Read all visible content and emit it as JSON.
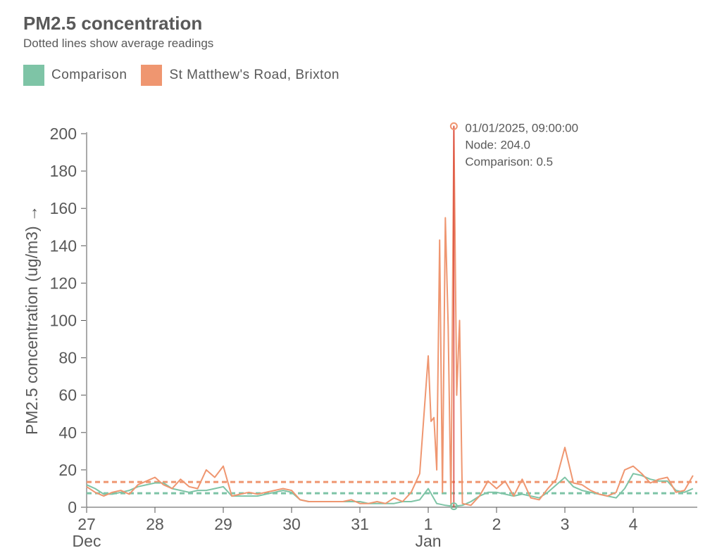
{
  "title": "PM2.5 concentration",
  "subtitle": "Dotted lines show average readings",
  "colors": {
    "comparison": "#7ec4a6",
    "node": "#ef9670",
    "cursor": "#d9423a",
    "axis": "#555555"
  },
  "legend": [
    {
      "label": "Comparison",
      "color": "#7ec4a6"
    },
    {
      "label": "St Matthew's Road, Brixton",
      "color": "#ef9670"
    }
  ],
  "tooltip": {
    "lines": [
      "01/01/2025, 09:00:00",
      "Node: 204.0",
      "Comparison: 0.5"
    ]
  },
  "chart_data": {
    "type": "line",
    "title": "PM2.5 concentration",
    "subtitle": "Dotted lines show average readings",
    "ylabel": "PM2.5 concentration (ug/m3) →",
    "xlabel": "",
    "ylim": [
      0,
      200
    ],
    "yticks": [
      0,
      20,
      40,
      60,
      80,
      100,
      120,
      140,
      160,
      180,
      200
    ],
    "xlim": [
      "2024-12-27T00:00",
      "2025-01-04T22:00"
    ],
    "xticks": [
      {
        "label": "27",
        "sub": "Dec",
        "date": "2024-12-27T00:00"
      },
      {
        "label": "28",
        "sub": "",
        "date": "2024-12-28T00:00"
      },
      {
        "label": "29",
        "sub": "",
        "date": "2024-12-29T00:00"
      },
      {
        "label": "30",
        "sub": "",
        "date": "2024-12-30T00:00"
      },
      {
        "label": "31",
        "sub": "",
        "date": "2024-12-31T00:00"
      },
      {
        "label": "1",
        "sub": "Jan",
        "date": "2025-01-01T00:00"
      },
      {
        "label": "2",
        "sub": "",
        "date": "2025-01-02T00:00"
      },
      {
        "label": "3",
        "sub": "",
        "date": "2025-01-03T00:00"
      },
      {
        "label": "4",
        "sub": "",
        "date": "2025-01-04T00:00"
      }
    ],
    "averages": {
      "Comparison": 7.5,
      "St Matthew's Road, Brixton": 13.5
    },
    "highlight": {
      "date": "2025-01-01T09:00",
      "node": 204.0,
      "comparison": 0.5
    },
    "series": [
      {
        "name": "Comparison",
        "color": "#7ec4a6",
        "points": [
          [
            "2024-12-27T00:00",
            12
          ],
          [
            "2024-12-27T03:00",
            10
          ],
          [
            "2024-12-27T06:00",
            7
          ],
          [
            "2024-12-27T09:00",
            7
          ],
          [
            "2024-12-27T12:00",
            8
          ],
          [
            "2024-12-27T15:00",
            9
          ],
          [
            "2024-12-27T18:00",
            11
          ],
          [
            "2024-12-27T21:00",
            12
          ],
          [
            "2024-12-28T00:00",
            13
          ],
          [
            "2024-12-28T03:00",
            13
          ],
          [
            "2024-12-28T06:00",
            10
          ],
          [
            "2024-12-28T09:00",
            9
          ],
          [
            "2024-12-28T12:00",
            8
          ],
          [
            "2024-12-28T15:00",
            9
          ],
          [
            "2024-12-28T18:00",
            9
          ],
          [
            "2024-12-28T21:00",
            10
          ],
          [
            "2024-12-29T00:00",
            11
          ],
          [
            "2024-12-29T03:00",
            6
          ],
          [
            "2024-12-29T06:00",
            6
          ],
          [
            "2024-12-29T09:00",
            6
          ],
          [
            "2024-12-29T12:00",
            6
          ],
          [
            "2024-12-29T15:00",
            7
          ],
          [
            "2024-12-29T18:00",
            8
          ],
          [
            "2024-12-29T21:00",
            9
          ],
          [
            "2024-12-30T00:00",
            8
          ],
          [
            "2024-12-30T03:00",
            4
          ],
          [
            "2024-12-30T06:00",
            3
          ],
          [
            "2024-12-30T09:00",
            3
          ],
          [
            "2024-12-30T12:00",
            3
          ],
          [
            "2024-12-30T15:00",
            3
          ],
          [
            "2024-12-30T18:00",
            3
          ],
          [
            "2024-12-30T21:00",
            3
          ],
          [
            "2024-12-31T00:00",
            3
          ],
          [
            "2024-12-31T03:00",
            2
          ],
          [
            "2024-12-31T06:00",
            2
          ],
          [
            "2024-12-31T09:00",
            2
          ],
          [
            "2024-12-31T12:00",
            2
          ],
          [
            "2024-12-31T15:00",
            3
          ],
          [
            "2024-12-31T18:00",
            3
          ],
          [
            "2024-12-31T21:00",
            4
          ],
          [
            "2025-01-01T00:00",
            10
          ],
          [
            "2025-01-01T03:00",
            2
          ],
          [
            "2025-01-01T06:00",
            1
          ],
          [
            "2025-01-01T09:00",
            0.5
          ],
          [
            "2025-01-01T12:00",
            1
          ],
          [
            "2025-01-01T15:00",
            3
          ],
          [
            "2025-01-01T18:00",
            6
          ],
          [
            "2025-01-01T21:00",
            8
          ],
          [
            "2025-01-02T00:00",
            8
          ],
          [
            "2025-01-02T03:00",
            7
          ],
          [
            "2025-01-02T06:00",
            6
          ],
          [
            "2025-01-02T09:00",
            7
          ],
          [
            "2025-01-02T12:00",
            6
          ],
          [
            "2025-01-02T15:00",
            5
          ],
          [
            "2025-01-02T18:00",
            8
          ],
          [
            "2025-01-02T21:00",
            12
          ],
          [
            "2025-01-03T00:00",
            16
          ],
          [
            "2025-01-03T03:00",
            11
          ],
          [
            "2025-01-03T06:00",
            9
          ],
          [
            "2025-01-03T09:00",
            8
          ],
          [
            "2025-01-03T12:00",
            7
          ],
          [
            "2025-01-03T15:00",
            6
          ],
          [
            "2025-01-03T18:00",
            5
          ],
          [
            "2025-01-03T21:00",
            10
          ],
          [
            "2025-01-04T00:00",
            18
          ],
          [
            "2025-01-04T03:00",
            17
          ],
          [
            "2025-01-04T06:00",
            15
          ],
          [
            "2025-01-04T09:00",
            14
          ],
          [
            "2025-01-04T12:00",
            14
          ],
          [
            "2025-01-04T15:00",
            9
          ],
          [
            "2025-01-04T18:00",
            8
          ],
          [
            "2025-01-04T21:00",
            10
          ]
        ]
      },
      {
        "name": "St Matthew's Road, Brixton",
        "color": "#ef9670",
        "points": [
          [
            "2024-12-27T00:00",
            11
          ],
          [
            "2024-12-27T03:00",
            8
          ],
          [
            "2024-12-27T06:00",
            6
          ],
          [
            "2024-12-27T09:00",
            8
          ],
          [
            "2024-12-27T12:00",
            9
          ],
          [
            "2024-12-27T15:00",
            7
          ],
          [
            "2024-12-27T18:00",
            12
          ],
          [
            "2024-12-27T21:00",
            14
          ],
          [
            "2024-12-28T00:00",
            16
          ],
          [
            "2024-12-28T03:00",
            12
          ],
          [
            "2024-12-28T06:00",
            10
          ],
          [
            "2024-12-28T09:00",
            15
          ],
          [
            "2024-12-28T12:00",
            11
          ],
          [
            "2024-12-28T15:00",
            10
          ],
          [
            "2024-12-28T18:00",
            20
          ],
          [
            "2024-12-28T21:00",
            16
          ],
          [
            "2024-12-29T00:00",
            22
          ],
          [
            "2024-12-29T03:00",
            6
          ],
          [
            "2024-12-29T06:00",
            7
          ],
          [
            "2024-12-29T09:00",
            8
          ],
          [
            "2024-12-29T12:00",
            7
          ],
          [
            "2024-12-29T15:00",
            8
          ],
          [
            "2024-12-29T18:00",
            9
          ],
          [
            "2024-12-29T21:00",
            10
          ],
          [
            "2024-12-30T00:00",
            9
          ],
          [
            "2024-12-30T03:00",
            4
          ],
          [
            "2024-12-30T06:00",
            3
          ],
          [
            "2024-12-30T09:00",
            3
          ],
          [
            "2024-12-30T12:00",
            3
          ],
          [
            "2024-12-30T15:00",
            3
          ],
          [
            "2024-12-30T18:00",
            3
          ],
          [
            "2024-12-30T21:00",
            4
          ],
          [
            "2024-12-31T00:00",
            2
          ],
          [
            "2024-12-31T03:00",
            2
          ],
          [
            "2024-12-31T06:00",
            3
          ],
          [
            "2024-12-31T09:00",
            2
          ],
          [
            "2024-12-31T12:00",
            5
          ],
          [
            "2024-12-31T15:00",
            3
          ],
          [
            "2024-12-31T18:00",
            8
          ],
          [
            "2024-12-31T21:00",
            18
          ],
          [
            "2025-01-01T00:00",
            81
          ],
          [
            "2025-01-01T01:00",
            46
          ],
          [
            "2025-01-01T02:00",
            48
          ],
          [
            "2025-01-01T03:00",
            20
          ],
          [
            "2025-01-01T04:00",
            143
          ],
          [
            "2025-01-01T05:00",
            8
          ],
          [
            "2025-01-01T06:00",
            155
          ],
          [
            "2025-01-01T07:00",
            97
          ],
          [
            "2025-01-01T08:00",
            0
          ],
          [
            "2025-01-01T09:00",
            204
          ],
          [
            "2025-01-01T10:00",
            60
          ],
          [
            "2025-01-01T11:00",
            100
          ],
          [
            "2025-01-01T12:00",
            2
          ],
          [
            "2025-01-01T15:00",
            1
          ],
          [
            "2025-01-01T18:00",
            6
          ],
          [
            "2025-01-01T21:00",
            14
          ],
          [
            "2025-01-02T00:00",
            10
          ],
          [
            "2025-01-02T03:00",
            14
          ],
          [
            "2025-01-02T06:00",
            6
          ],
          [
            "2025-01-02T09:00",
            15
          ],
          [
            "2025-01-02T12:00",
            5
          ],
          [
            "2025-01-02T15:00",
            4
          ],
          [
            "2025-01-02T18:00",
            10
          ],
          [
            "2025-01-02T21:00",
            15
          ],
          [
            "2025-01-03T00:00",
            32
          ],
          [
            "2025-01-03T03:00",
            13
          ],
          [
            "2025-01-03T06:00",
            12
          ],
          [
            "2025-01-03T09:00",
            9
          ],
          [
            "2025-01-03T12:00",
            7
          ],
          [
            "2025-01-03T15:00",
            6
          ],
          [
            "2025-01-03T18:00",
            8
          ],
          [
            "2025-01-03T21:00",
            20
          ],
          [
            "2025-01-04T00:00",
            22
          ],
          [
            "2025-01-04T03:00",
            18
          ],
          [
            "2025-01-04T06:00",
            13
          ],
          [
            "2025-01-04T09:00",
            15
          ],
          [
            "2025-01-04T12:00",
            16
          ],
          [
            "2025-01-04T15:00",
            8
          ],
          [
            "2025-01-04T18:00",
            9
          ],
          [
            "2025-01-04T21:00",
            17
          ]
        ]
      }
    ]
  }
}
